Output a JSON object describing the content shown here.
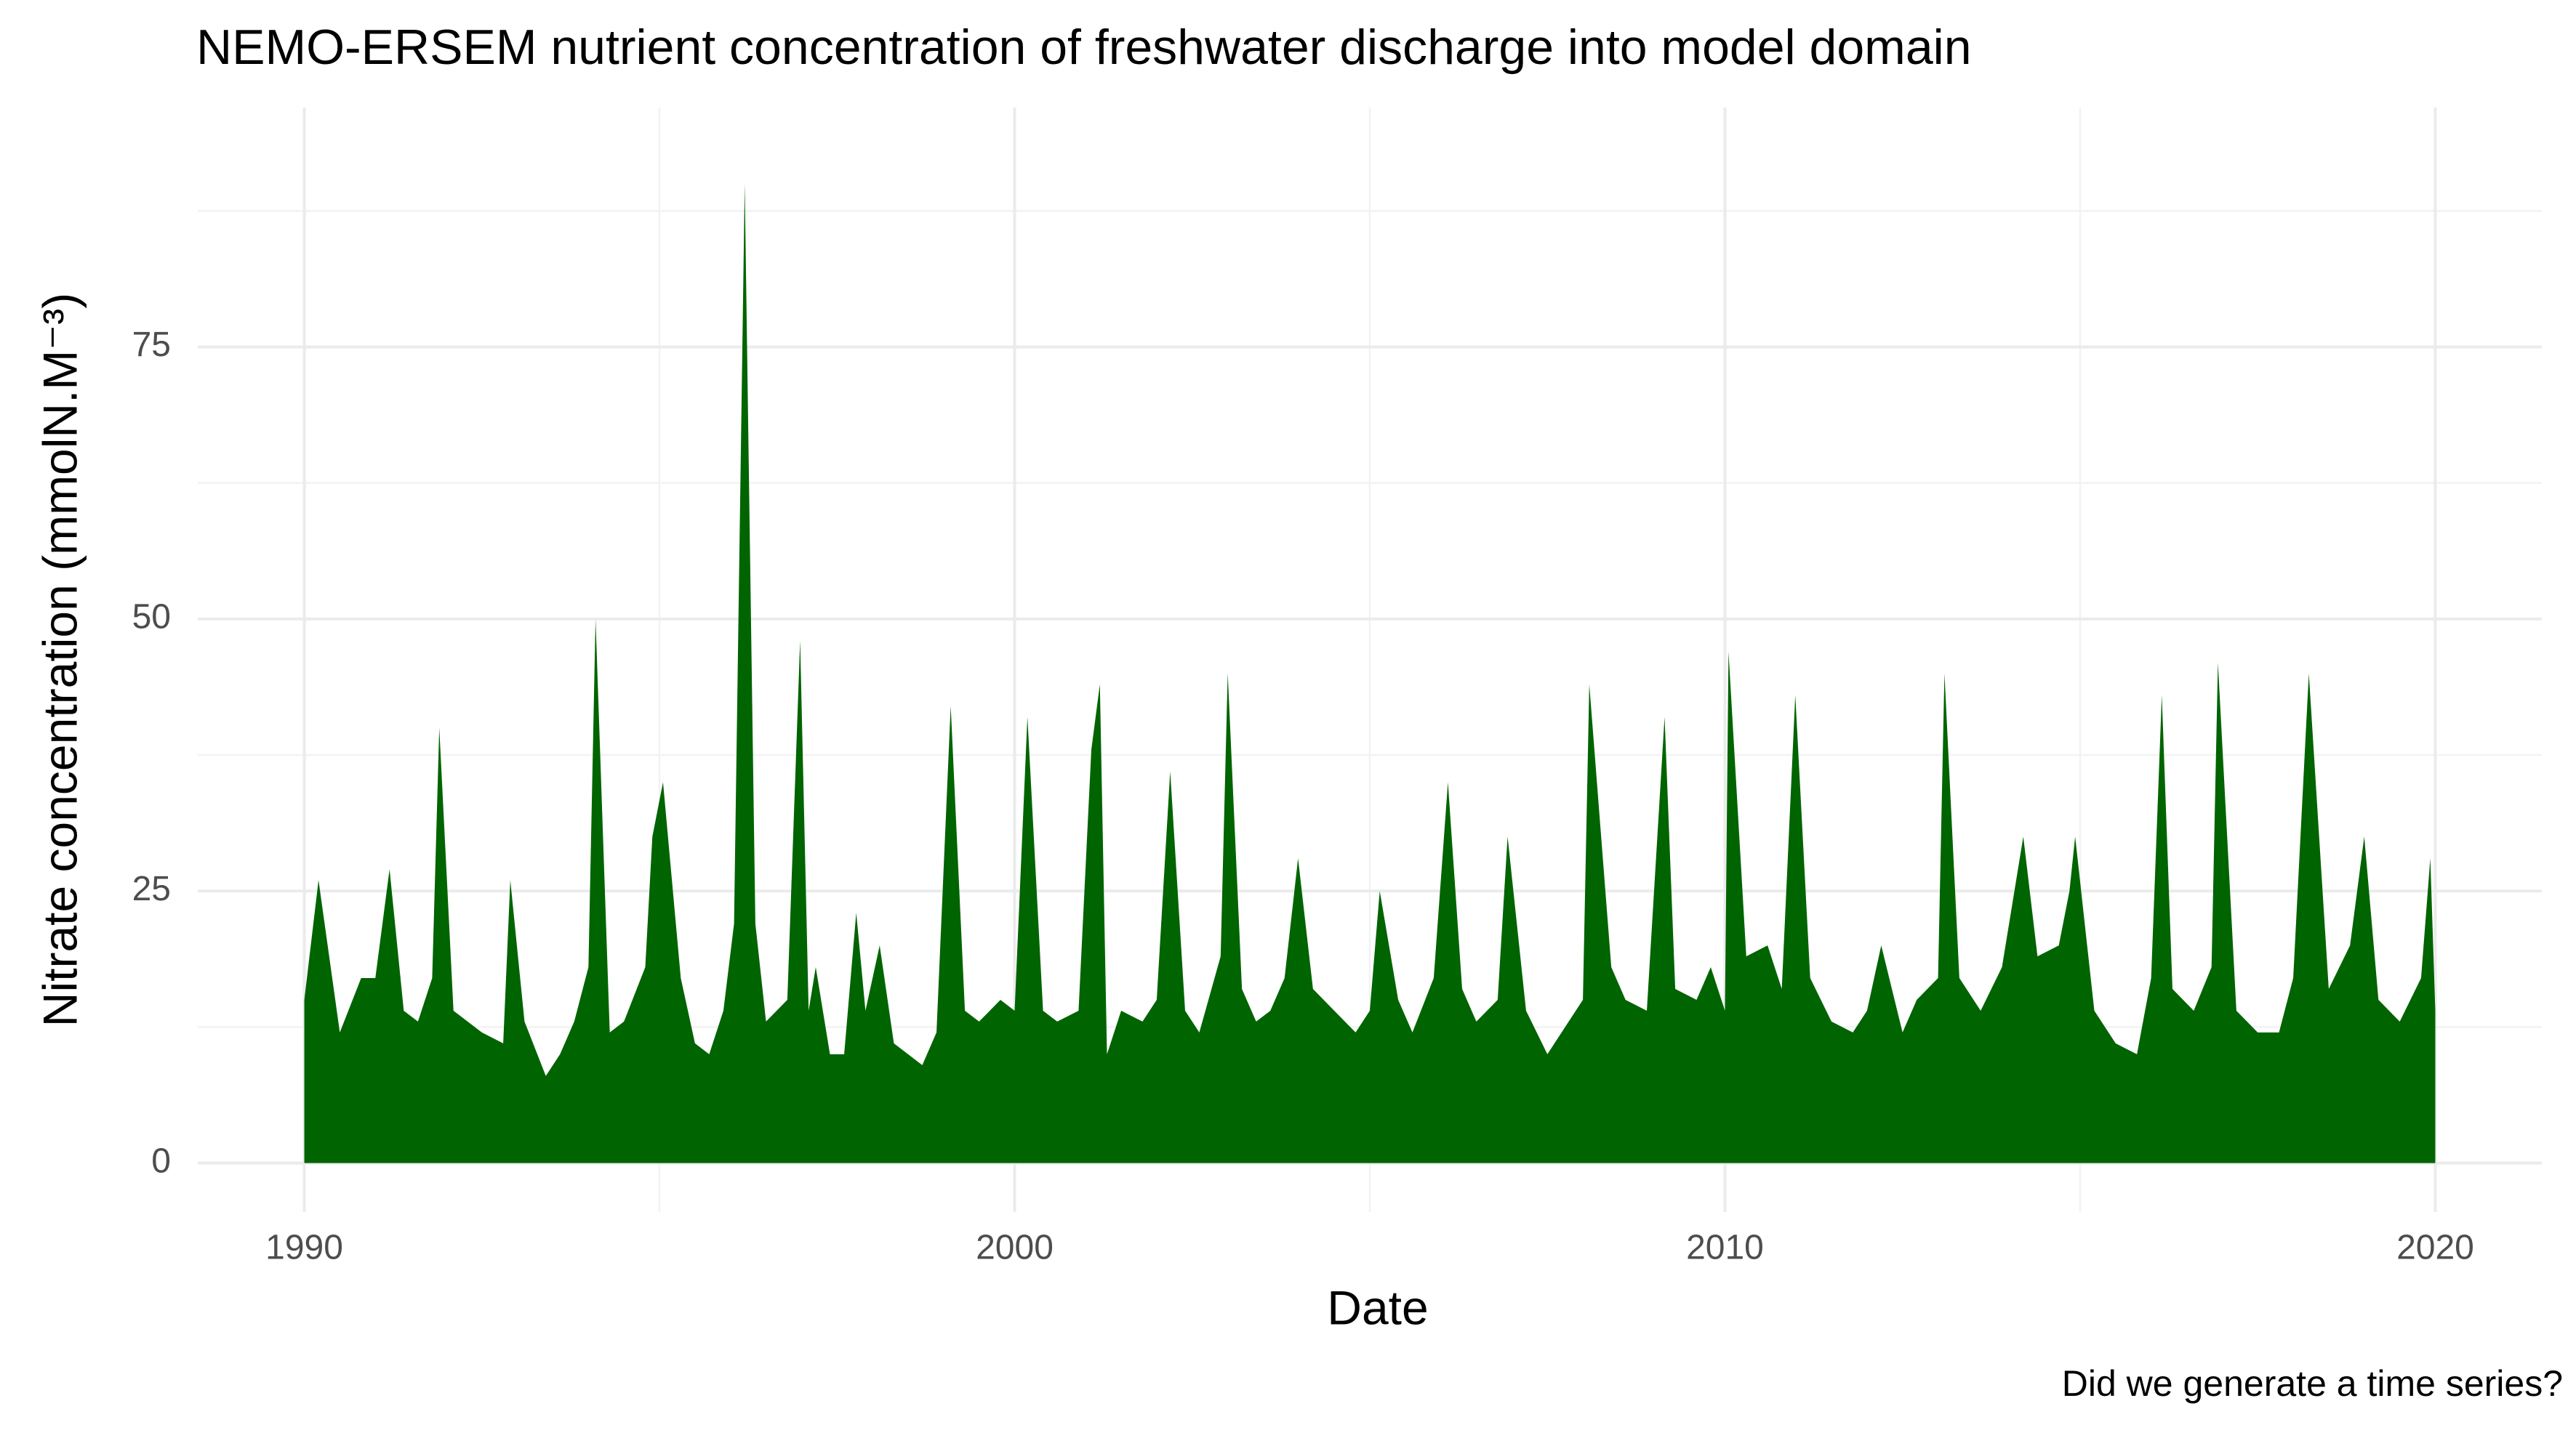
{
  "chart_data": {
    "type": "area",
    "title": "NEMO-ERSEM nutrient concentration of freshwater discharge into model domain",
    "x_label": "Date",
    "y_label": "Nitrate concentration (mmolN.M⁻³)",
    "caption": "Did we generate a time series?",
    "color": "#006400",
    "grid": true,
    "minor_grid": true,
    "xlim": [
      1988.5,
      2021.5
    ],
    "xticks": [
      1990,
      2000,
      2010,
      2020
    ],
    "ylim": [
      -4.5,
      97
    ],
    "yticks": [
      0,
      25,
      50,
      75
    ],
    "x": [
      1990.0,
      1990.2,
      1990.5,
      1990.8,
      1991.0,
      1991.2,
      1991.4,
      1991.6,
      1991.8,
      1991.9,
      1992.1,
      1992.5,
      1992.8,
      1992.9,
      1993.1,
      1993.4,
      1993.6,
      1993.8,
      1994.0,
      1994.1,
      1994.3,
      1994.5,
      1994.8,
      1994.9,
      1995.05,
      1995.3,
      1995.5,
      1995.7,
      1995.9,
      1996.05,
      1996.2,
      1996.35,
      1996.5,
      1996.8,
      1996.98,
      1997.1,
      1997.2,
      1997.4,
      1997.6,
      1997.77,
      1997.9,
      1998.1,
      1998.3,
      1998.5,
      1998.7,
      1998.9,
      1999.1,
      1999.3,
      1999.5,
      1999.8,
      2000.0,
      2000.18,
      2000.4,
      2000.6,
      2000.9,
      2001.08,
      2001.2,
      2001.3,
      2001.5,
      2001.8,
      2002.0,
      2002.19,
      2002.4,
      2002.6,
      2002.9,
      2003.0,
      2003.2,
      2003.4,
      2003.6,
      2003.8,
      2003.99,
      2004.2,
      2004.5,
      2004.8,
      2005.0,
      2005.14,
      2005.4,
      2005.6,
      2005.9,
      2006.1,
      2006.3,
      2006.5,
      2006.8,
      2006.94,
      2007.2,
      2007.5,
      2007.8,
      2008.0,
      2008.09,
      2008.4,
      2008.6,
      2008.9,
      2009.15,
      2009.3,
      2009.6,
      2009.8,
      2010.0,
      2010.05,
      2010.3,
      2010.6,
      2010.8,
      2010.99,
      2011.2,
      2011.5,
      2011.8,
      2012.0,
      2012.2,
      2012.5,
      2012.7,
      2013.0,
      2013.09,
      2013.3,
      2013.6,
      2013.9,
      2014.2,
      2014.4,
      2014.7,
      2014.85,
      2014.93,
      2015.2,
      2015.5,
      2015.8,
      2016.0,
      2016.15,
      2016.3,
      2016.6,
      2016.85,
      2016.94,
      2017.2,
      2017.5,
      2017.8,
      2018.0,
      2018.22,
      2018.5,
      2018.8,
      2019.0,
      2019.2,
      2019.5,
      2019.8,
      2019.93,
      2020.0
    ],
    "values": [
      15,
      26,
      12,
      17,
      17,
      27,
      14,
      13,
      17,
      40,
      14,
      12,
      11,
      26,
      13,
      8,
      10,
      13,
      18,
      50,
      12,
      13,
      18,
      30,
      35,
      17,
      11,
      10,
      14,
      22,
      90,
      22,
      13,
      15,
      48,
      14,
      18,
      10,
      10,
      23,
      14,
      20,
      11,
      10,
      9,
      12,
      42,
      14,
      13,
      15,
      14,
      41,
      14,
      13,
      14,
      38,
      44,
      10,
      14,
      13,
      15,
      36,
      14,
      12,
      19,
      45,
      16,
      13,
      14,
      17,
      28,
      16,
      14,
      12,
      14,
      25,
      15,
      12,
      17,
      35,
      16,
      13,
      15,
      30,
      14,
      10,
      13,
      15,
      44,
      18,
      15,
      14,
      41,
      16,
      15,
      18,
      14,
      47,
      19,
      20,
      16,
      43,
      17,
      13,
      12,
      14,
      20,
      12,
      15,
      17,
      45,
      17,
      14,
      18,
      30,
      19,
      20,
      25,
      30,
      14,
      11,
      10,
      17,
      43,
      16,
      14,
      18,
      46,
      14,
      12,
      12,
      17,
      45,
      16,
      20,
      30,
      15,
      13,
      17,
      28,
      14
    ]
  }
}
